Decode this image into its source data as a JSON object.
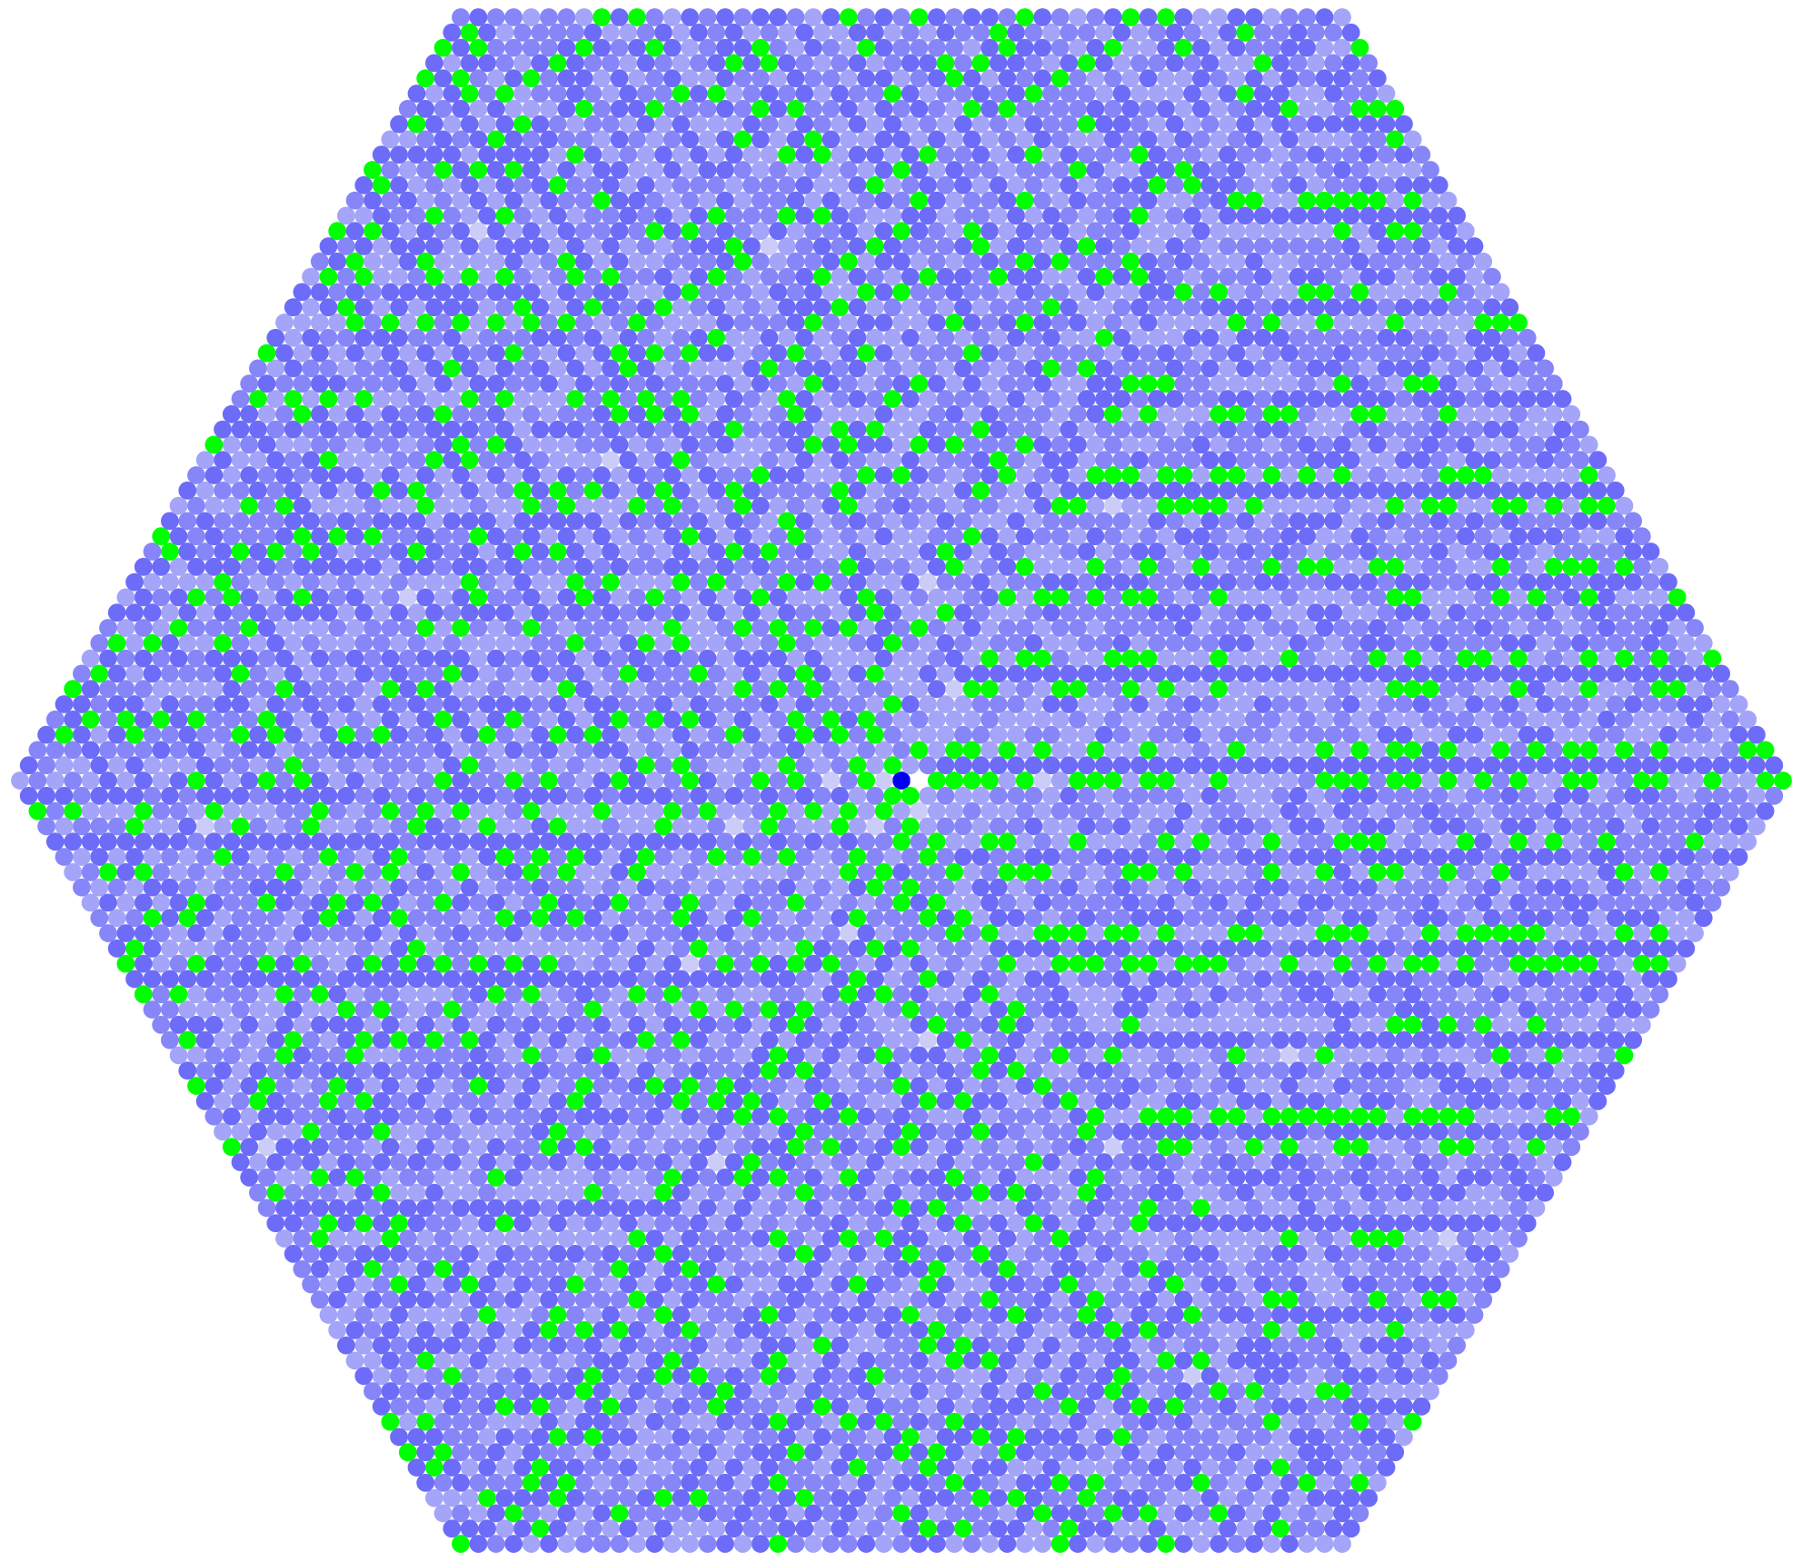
{
  "diagram": {
    "type": "hexagonal-spiral-grid",
    "rings": 50,
    "colors": {
      "background": "#ffffff",
      "center": "#0000f0",
      "prime": "#00ff00",
      "empty": "#ffffff",
      "prime_square": "#ccccf8",
      "few_divisors": "#a4a4f8",
      "medium_divisors": "#8686f8",
      "many_divisors": "#6c6cf8"
    }
  }
}
